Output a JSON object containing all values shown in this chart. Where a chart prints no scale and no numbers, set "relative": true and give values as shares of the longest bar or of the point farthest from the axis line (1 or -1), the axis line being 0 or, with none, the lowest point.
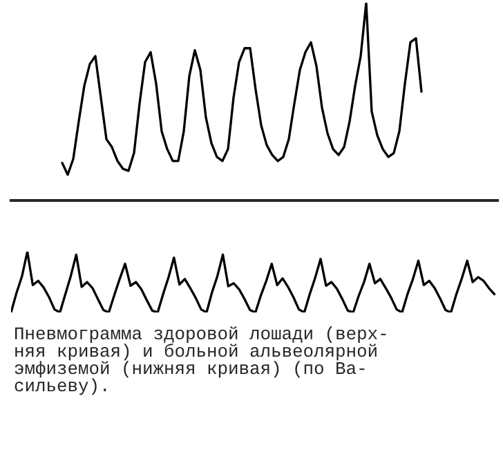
{
  "chart_data": [
    {
      "type": "line",
      "relative": true,
      "marker": "none",
      "line_style": "solid",
      "categories": [
        null,
        null,
        null,
        null,
        null,
        null,
        null,
        null,
        null,
        null,
        null,
        null,
        null,
        null,
        null,
        null,
        null,
        null,
        null,
        null,
        null,
        null,
        null,
        null,
        null,
        null,
        null,
        null,
        null,
        null,
        null,
        null,
        null,
        null,
        null,
        null,
        null,
        null,
        null,
        null,
        null,
        null,
        null,
        null,
        null,
        null,
        null,
        null,
        null,
        null,
        null,
        null,
        null,
        null,
        null,
        null,
        null,
        null,
        null,
        null,
        null,
        null,
        null,
        null,
        null,
        null
      ],
      "series": [
        {
          "color": "#000000",
          "values": [
            0.19,
            0.13,
            0.21,
            0.4,
            0.58,
            0.69,
            0.73,
            0.52,
            0.31,
            0.27,
            0.2,
            0.16,
            0.15,
            0.24,
            0.49,
            0.7,
            0.75,
            0.59,
            0.35,
            0.26,
            0.2,
            0.2,
            0.35,
            0.63,
            0.76,
            0.66,
            0.42,
            0.29,
            0.22,
            0.2,
            0.26,
            0.52,
            0.7,
            0.77,
            0.77,
            0.56,
            0.38,
            0.28,
            0.23,
            0.2,
            0.22,
            0.31,
            0.49,
            0.66,
            0.75,
            0.8,
            0.68,
            0.47,
            0.34,
            0.26,
            0.23,
            0.27,
            0.4,
            0.58,
            0.73,
            1.0,
            0.45,
            0.33,
            0.26,
            0.22,
            0.24,
            0.35,
            0.59,
            0.8,
            0.82,
            0.55
          ]
        }
      ]
    },
    {
      "type": "line",
      "relative": true,
      "marker": "none",
      "line_style": "solid",
      "categories": [
        null,
        null,
        null,
        null,
        null,
        null,
        null,
        null,
        null,
        null,
        null,
        null,
        null,
        null,
        null,
        null,
        null,
        null,
        null,
        null,
        null,
        null,
        null,
        null,
        null,
        null,
        null,
        null,
        null,
        null,
        null,
        null,
        null,
        null,
        null,
        null,
        null,
        null,
        null,
        null,
        null,
        null,
        null,
        null,
        null,
        null,
        null,
        null,
        null,
        null,
        null,
        null,
        null,
        null,
        null,
        null,
        null,
        null,
        null,
        null,
        null,
        null,
        null,
        null,
        null,
        null,
        null,
        null,
        null,
        null,
        null,
        null,
        null,
        null,
        null,
        null,
        null,
        null,
        null,
        null,
        null,
        null,
        null,
        null,
        null,
        null,
        null,
        null,
        null,
        null
      ],
      "series": [
        {
          "color": "#000000",
          "values": [
            0,
            0.32,
            0.59,
            1.0,
            0.45,
            0.52,
            0.41,
            0.25,
            0.05,
            0,
            0.3,
            0.6,
            0.95,
            0.42,
            0.5,
            0.4,
            0.22,
            0.04,
            0,
            0.28,
            0.55,
            0.8,
            0.44,
            0.5,
            0.38,
            0.2,
            0.03,
            0,
            0.3,
            0.58,
            0.9,
            0.46,
            0.55,
            0.4,
            0.24,
            0.05,
            0,
            0.33,
            0.6,
            0.95,
            0.43,
            0.48,
            0.38,
            0.22,
            0.04,
            0,
            0.28,
            0.52,
            0.8,
            0.45,
            0.56,
            0.42,
            0.25,
            0.05,
            0,
            0.3,
            0.57,
            0.88,
            0.44,
            0.5,
            0.39,
            0.22,
            0.03,
            0,
            0.27,
            0.5,
            0.8,
            0.48,
            0.55,
            0.4,
            0.24,
            0.05,
            0,
            0.3,
            0.55,
            0.85,
            0.45,
            0.52,
            0.4,
            0.23,
            0.04,
            0,
            0.3,
            0.56,
            0.85,
            0.5,
            0.58,
            0.52,
            0.4,
            0.3
          ]
        }
      ],
      "annotations": [
        "Пневмограмма здоровой лошади (верх-\nняя кривая) и больной альвеолярной\nэмфиземой (нижняя кривая) (по Ва-\nсильеву)."
      ]
    }
  ]
}
